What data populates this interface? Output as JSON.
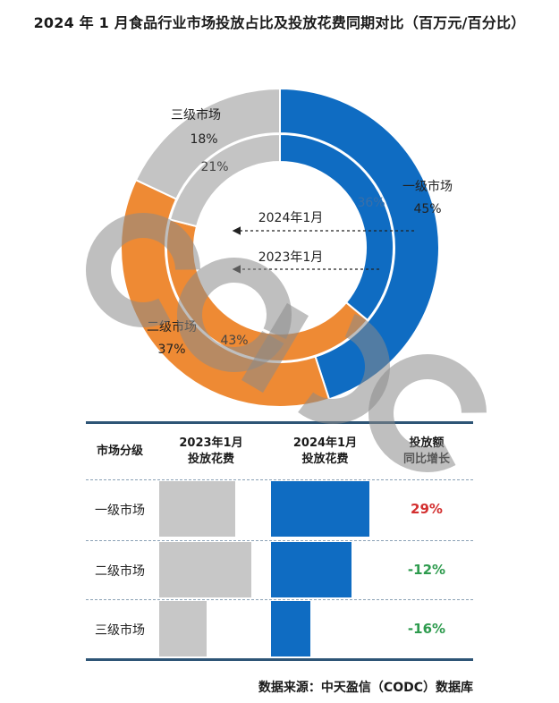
{
  "title": "2024 年 1 月食品行业市场投放占比及投放花费同期对比（百万元/百分比）",
  "chart_data": [
    {
      "type": "pie",
      "subtype": "nested-donut",
      "series": [
        {
          "name": "2024年1月",
          "ring": "outer",
          "categories": [
            "一级市场",
            "二级市场",
            "三级市场"
          ],
          "values": [
            45,
            37,
            18
          ],
          "labels": [
            "一级市场",
            "二级市场",
            "三级市场"
          ],
          "value_labels": [
            "45%",
            "37%",
            "18%"
          ]
        },
        {
          "name": "2023年1月",
          "ring": "inner",
          "categories": [
            "一级市场",
            "二级市场",
            "三级市场"
          ],
          "values": [
            36,
            43,
            21
          ],
          "value_labels": [
            "36%",
            "43%",
            "21%"
          ]
        }
      ],
      "colors": [
        "#0f6cc2",
        "#ee8a34",
        "#c4c4c4"
      ],
      "annotations": [
        "2024年1月",
        "2023年1月"
      ]
    },
    {
      "type": "table",
      "headers": [
        [
          "市场分级"
        ],
        [
          "2023年1月",
          "投放花费"
        ],
        [
          "2024年1月",
          "投放花费"
        ],
        [
          "投放额",
          "同比增长"
        ]
      ],
      "rows": [
        {
          "label": "一级市场",
          "spend_2023": 0.68,
          "spend_2024": 0.88,
          "growth": "29%",
          "positive": true
        },
        {
          "label": "二级市场",
          "spend_2023": 0.82,
          "spend_2024": 0.72,
          "growth": "-12%",
          "positive": false
        },
        {
          "label": "三级市场",
          "spend_2023": 0.42,
          "spend_2024": 0.35,
          "growth": "-16%",
          "positive": false
        }
      ],
      "bar_colors": {
        "y2023": "#c7c7c7",
        "y2024": "#0f6cc2"
      },
      "growth_colors": {
        "positive": "#d32f2f",
        "negative": "#2e9b4e"
      }
    }
  ],
  "watermark": "CODC",
  "source": "数据来源：中天盈信（CODC）数据库"
}
